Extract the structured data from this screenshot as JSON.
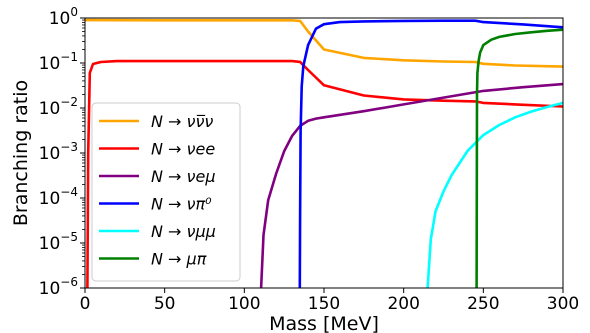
{
  "chart_data": {
    "type": "line",
    "xlabel": "Mass [MeV]",
    "ylabel": "Branching ratio",
    "xlim": [
      0,
      300
    ],
    "ylim": [
      1e-06,
      1
    ],
    "yscale": "log",
    "grid": false,
    "legend_position": "lower-left",
    "x_ticks": [
      0,
      50,
      100,
      150,
      200,
      250,
      300
    ],
    "x_tick_labels": [
      "0",
      "50",
      "100",
      "150",
      "200",
      "250",
      "300"
    ],
    "y_ticks": [
      1e-06,
      1e-05,
      0.0001,
      0.001,
      0.01,
      0.1,
      1
    ],
    "y_tick_labels": [
      {
        "base": "10",
        "exp": "−6"
      },
      {
        "base": "10",
        "exp": "−5"
      },
      {
        "base": "10",
        "exp": "−4"
      },
      {
        "base": "10",
        "exp": "−3"
      },
      {
        "base": "10",
        "exp": "−2"
      },
      {
        "base": "10",
        "exp": "−1"
      },
      {
        "base": "10",
        "exp": "0"
      }
    ],
    "series": [
      {
        "name": "N → νν̅ν",
        "color": "#FFA500",
        "x": [
          0,
          50,
          100,
          130,
          135,
          140,
          150,
          175,
          200,
          225,
          245,
          250,
          270,
          300
        ],
        "y": [
          0.9,
          0.89,
          0.89,
          0.89,
          0.86,
          0.5,
          0.2,
          0.13,
          0.115,
          0.108,
          0.105,
          0.096,
          0.088,
          0.083
        ]
      },
      {
        "name": "N → νee",
        "color": "#FF0000",
        "x": [
          1.5,
          2,
          3,
          5,
          10,
          20,
          50,
          100,
          130,
          135,
          140,
          150,
          175,
          200,
          225,
          245,
          250,
          270,
          300
        ],
        "y": [
          1e-06,
          0.001,
          0.06,
          0.095,
          0.105,
          0.11,
          0.11,
          0.11,
          0.11,
          0.106,
          0.07,
          0.032,
          0.019,
          0.0155,
          0.0145,
          0.014,
          0.013,
          0.012,
          0.0108
        ]
      },
      {
        "name": "N → νeμ",
        "color": "#800080",
        "x": [
          110.5,
          112,
          115,
          120,
          125,
          130,
          135,
          140,
          145,
          150,
          175,
          200,
          225,
          250,
          275,
          300
        ],
        "y": [
          1e-06,
          1.5e-05,
          9e-05,
          0.00035,
          0.0011,
          0.0024,
          0.004,
          0.0052,
          0.0058,
          0.0062,
          0.0085,
          0.012,
          0.017,
          0.024,
          0.029,
          0.034
        ]
      },
      {
        "name": "N → νπ⁰",
        "color": "#0000FF",
        "x": [
          134.8,
          135.0,
          135.3,
          136,
          137,
          140,
          145,
          150,
          160,
          175,
          200,
          225,
          245,
          250,
          275,
          300
        ],
        "y": [
          1e-06,
          4e-05,
          0.003,
          0.03,
          0.085,
          0.25,
          0.58,
          0.73,
          0.81,
          0.84,
          0.86,
          0.87,
          0.87,
          0.81,
          0.72,
          0.62
        ]
      },
      {
        "name": "N → νμμ",
        "color": "#00FFFF",
        "x": [
          215,
          217,
          220,
          225,
          230,
          240,
          250,
          260,
          270,
          280,
          290,
          300
        ],
        "y": [
          1e-06,
          1.2e-05,
          5e-05,
          0.00014,
          0.00032,
          0.0011,
          0.0025,
          0.0042,
          0.0062,
          0.0083,
          0.0105,
          0.013
        ]
      },
      {
        "name": "N → μπ",
        "color": "#008000",
        "x": [
          245.8,
          246.0,
          246.3,
          247,
          248,
          250,
          255,
          260,
          270,
          280,
          290,
          300
        ],
        "y": [
          1e-06,
          0.02,
          0.06,
          0.11,
          0.17,
          0.25,
          0.33,
          0.38,
          0.44,
          0.48,
          0.52,
          0.55
        ]
      }
    ]
  }
}
